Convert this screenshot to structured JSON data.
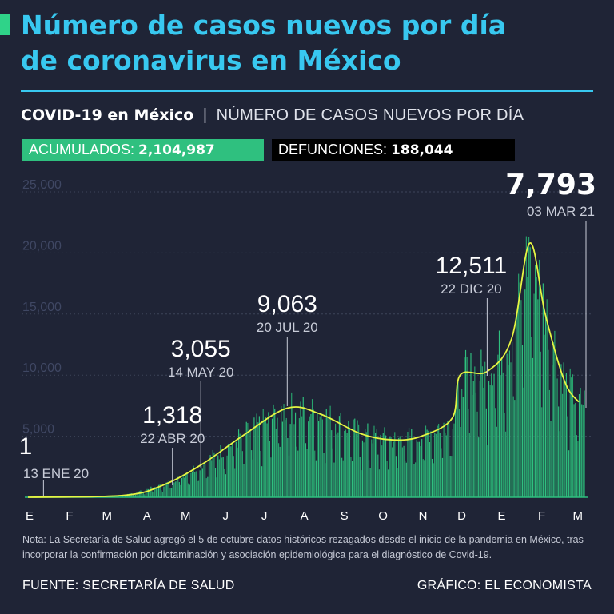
{
  "header": {
    "title_line1": "Número de casos nuevos por día",
    "title_line2": "de coronavirus en México",
    "subtitle_bold": "COVID-19 en México",
    "subtitle_sep": "|",
    "subtitle_light": "NÚMERO DE CASOS NUEVOS POR DÍA"
  },
  "badges": {
    "acumulados_label": "ACUMULADOS:",
    "acumulados_value": "2,104,987",
    "defunciones_label": "DEFUNCIONES:",
    "defunciones_value": "188,044"
  },
  "colors": {
    "background": "#1f2436",
    "title": "#38c8f0",
    "bars": "#2fc07f",
    "trend": "#e6f542",
    "accent": "#2fd389"
  },
  "chart_data": {
    "type": "bar",
    "title": "",
    "ylim": [
      0,
      25000
    ],
    "y_ticks": [
      "5,000",
      "10,000",
      "15,000",
      "20,000",
      "25,000"
    ],
    "x_ticks": [
      "E",
      "F",
      "M",
      "A",
      "M",
      "J",
      "J",
      "A",
      "S",
      "O",
      "N",
      "D",
      "E",
      "F",
      "M"
    ],
    "x_period": [
      "2020-01-01",
      "2021-03-08"
    ],
    "grid": "horizontal dashed",
    "series": [
      {
        "type": "bar",
        "description": "daily new cases (approximate monthly levels)",
        "monthly_approx": [
          {
            "month": "2020-01",
            "value": 0
          },
          {
            "month": "2020-02",
            "value": 0
          },
          {
            "month": "2020-03",
            "value": 200
          },
          {
            "month": "2020-04",
            "value": 1300
          },
          {
            "month": "2020-05",
            "value": 2800
          },
          {
            "month": "2020-06",
            "value": 5500
          },
          {
            "month": "2020-07",
            "value": 7500
          },
          {
            "month": "2020-08",
            "value": 6500
          },
          {
            "month": "2020-09",
            "value": 5000
          },
          {
            "month": "2020-10",
            "value": 5200
          },
          {
            "month": "2020-11",
            "value": 6500
          },
          {
            "month": "2020-12",
            "value": 11000
          },
          {
            "month": "2021-01",
            "value": 15000
          },
          {
            "month": "2021-02",
            "value": 11000
          },
          {
            "month": "2021-03",
            "value": 6500
          }
        ]
      },
      {
        "type": "line",
        "description": "7-day trend",
        "points": [
          {
            "x": "2020-01-01",
            "y": 0
          },
          {
            "x": "2020-03-15",
            "y": 150
          },
          {
            "x": "2020-04-15",
            "y": 1000
          },
          {
            "x": "2020-05-15",
            "y": 2700
          },
          {
            "x": "2020-06-15",
            "y": 5000
          },
          {
            "x": "2020-07-20",
            "y": 7300
          },
          {
            "x": "2020-08-15",
            "y": 6800
          },
          {
            "x": "2020-09-15",
            "y": 5200
          },
          {
            "x": "2020-10-10",
            "y": 4700
          },
          {
            "x": "2020-11-01",
            "y": 5000
          },
          {
            "x": "2020-11-25",
            "y": 6500
          },
          {
            "x": "2020-12-01",
            "y": 10000
          },
          {
            "x": "2020-12-22",
            "y": 10300
          },
          {
            "x": "2021-01-10",
            "y": 13000
          },
          {
            "x": "2021-01-24",
            "y": 20800
          },
          {
            "x": "2021-02-05",
            "y": 15000
          },
          {
            "x": "2021-02-20",
            "y": 9500
          },
          {
            "x": "2021-03-03",
            "y": 7800
          }
        ]
      }
    ],
    "annotations": [
      {
        "value_label": "1",
        "date_label": "13 ENE 20",
        "x": "2020-01-13",
        "y": 1
      },
      {
        "value_label": "1,318",
        "date_label": "22 ABR 20",
        "x": "2020-04-22",
        "y": 1318
      },
      {
        "value_label": "3,055",
        "date_label": "14 MAY 20",
        "x": "2020-05-14",
        "y": 3055
      },
      {
        "value_label": "9,063",
        "date_label": "20 JUL 20",
        "x": "2020-07-20",
        "y": 9063
      },
      {
        "value_label": "12,511",
        "date_label": "22 DIC 20",
        "x": "2020-12-22",
        "y": 12511
      },
      {
        "value_label": "7,793",
        "date_label": "03 MAR 21",
        "x": "2021-03-03",
        "y": 7793
      }
    ]
  },
  "note": "Nota: La Secretaría de Salud agregó el 5 de octubre datos históricos rezagados desde el inicio de la pandemia en México, tras incorporar la confirmación por dictaminación y asociación epidemiológica para el diagnóstico de Covid-19.",
  "footer": {
    "source": "FUENTE: SECRETARÍA DE SALUD",
    "credit": "GRÁFICO: EL ECONOMISTA"
  }
}
